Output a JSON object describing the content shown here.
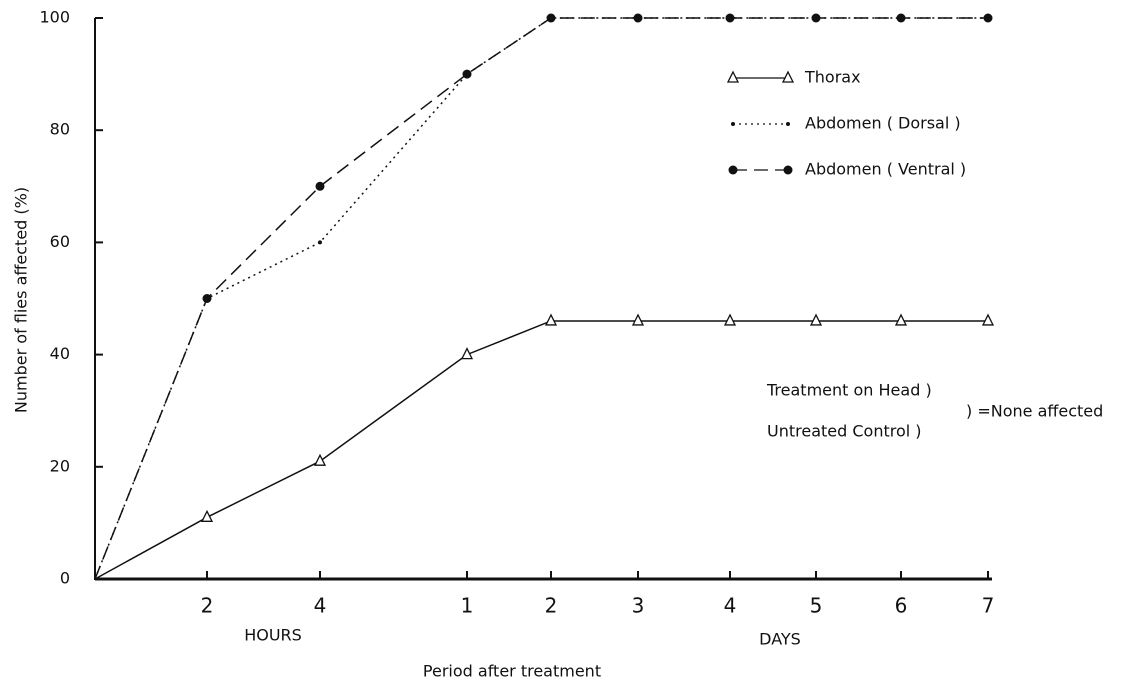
{
  "chart_data": {
    "type": "line",
    "y_label": "Number of flies affected (%)",
    "x_label": "Period after treatment",
    "x_group_labels": [
      "HOURS",
      "DAYS"
    ],
    "categories": [
      null,
      "2",
      "4",
      "1",
      "2",
      "3",
      "4",
      "5",
      "6",
      "7"
    ],
    "series": [
      {
        "name": "Thorax",
        "color": "#111111",
        "values": [
          0,
          11,
          21,
          40,
          46,
          46,
          46,
          46,
          46,
          46
        ]
      },
      {
        "name": "Abdomen ( Dorsal )",
        "color": "#111111",
        "values": [
          0,
          50,
          60,
          90,
          100,
          100,
          100,
          100,
          100,
          100
        ]
      },
      {
        "name": "Abdomen ( Ventral )",
        "color": "#111111",
        "values": [
          0,
          50,
          70,
          90,
          100,
          100,
          100,
          100,
          100,
          100
        ]
      }
    ],
    "ylim": [
      0,
      100
    ],
    "yticks": [
      0,
      20,
      40,
      60,
      80,
      100
    ],
    "annotations": [
      "Treatment on Head )",
      "Untreated Control )",
      ") =None affected"
    ]
  }
}
